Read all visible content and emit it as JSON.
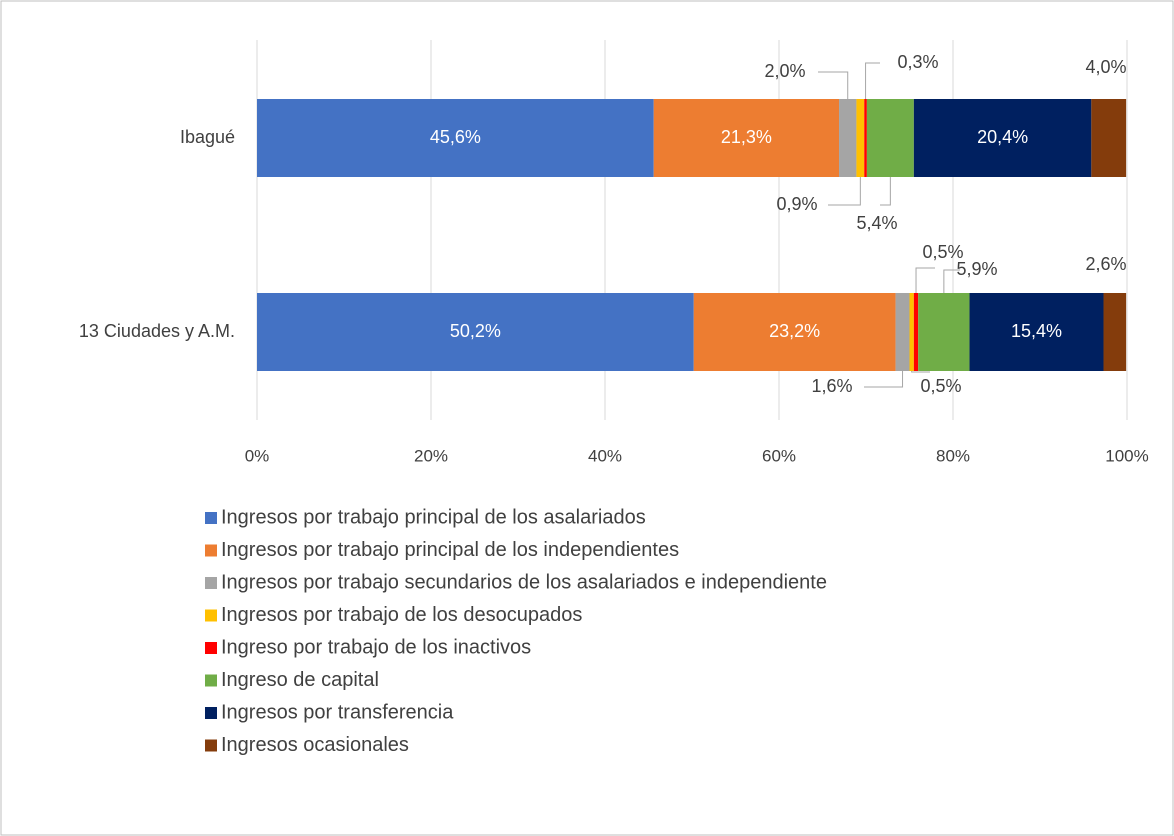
{
  "chart_data": {
    "type": "stacked_bar_horizontal",
    "categories": [
      "Ibagué",
      "13 Ciudades y A.M."
    ],
    "series": [
      {
        "name": "Ingresos por trabajo principal de los asalariados",
        "color": "#4472c4",
        "values": [
          45.6,
          50.2
        ],
        "value_labels": [
          "45,6%",
          "50,2%"
        ]
      },
      {
        "name": "Ingresos por trabajo principal de los independientes",
        "color": "#ed7d31",
        "values": [
          21.3,
          23.2
        ],
        "value_labels": [
          "21,3%",
          "23,2%"
        ]
      },
      {
        "name": "Ingresos por trabajo secundarios de los asalariados e independiente",
        "color": "#a5a5a5",
        "values": [
          2.0,
          1.6
        ],
        "value_labels": [
          "2,0%",
          "1,6%"
        ]
      },
      {
        "name": "Ingresos por trabajo de los desocupados",
        "color": "#ffc000",
        "values": [
          0.9,
          0.5
        ],
        "value_labels": [
          "0,9%",
          "0,5%"
        ]
      },
      {
        "name": "Ingreso por trabajo de los inactivos",
        "color": "#ff0000",
        "values": [
          0.3,
          0.5
        ],
        "value_labels": [
          "0,3%",
          "0,5%"
        ]
      },
      {
        "name": "Ingreso de capital",
        "color": "#70ad47",
        "values": [
          5.4,
          5.9
        ],
        "value_labels": [
          "5,4%",
          "5,9%"
        ]
      },
      {
        "name": "Ingresos por transferencia",
        "color": "#002060",
        "values": [
          20.4,
          15.4
        ],
        "value_labels": [
          "20,4%",
          "15,4%"
        ]
      },
      {
        "name": "Ingresos ocasionales",
        "color": "#843c0c",
        "values": [
          4.0,
          2.6
        ],
        "value_labels": [
          "4,0%",
          "2,6%"
        ]
      }
    ],
    "xlim": [
      0,
      100
    ],
    "xticks": [
      {
        "value": 0,
        "label": "0%"
      },
      {
        "value": 20,
        "label": "20%"
      },
      {
        "value": 40,
        "label": "40%"
      },
      {
        "value": 60,
        "label": "60%"
      },
      {
        "value": 80,
        "label": "80%"
      },
      {
        "value": 100,
        "label": "100%"
      }
    ],
    "grid": true,
    "legend": "bottom"
  }
}
